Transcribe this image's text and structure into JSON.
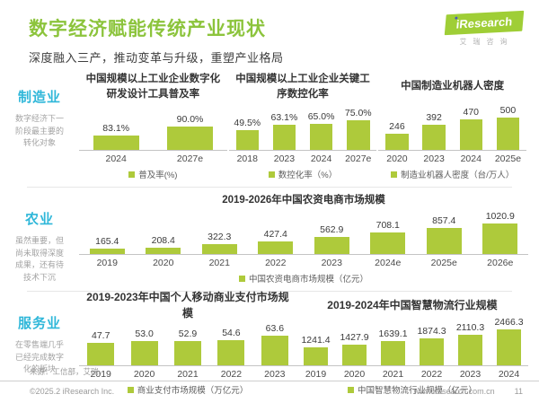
{
  "header": {
    "title": "数字经济赋能传统产业现状",
    "subtitle": "深度融入三产，推动变革与升级，重塑产业格局",
    "logo_text": "iResearch",
    "logo_sub": "艾瑞咨询"
  },
  "sidebar": [
    {
      "label": "制造业",
      "desc": "数字经济下一阶段最主要的转化对象"
    },
    {
      "label": "农业",
      "desc": "虽然重要，但尚未取得深度成果，还有待技术下沉"
    },
    {
      "label": "服务业",
      "desc": "在零售端几乎已经完成数字化的版块"
    }
  ],
  "chart_data": [
    {
      "type": "bar",
      "title": "中国规模以上工业企业数字化研发设计工具普及率",
      "categories": [
        "2024",
        "2027e"
      ],
      "values": [
        83.1,
        90.0
      ],
      "value_labels": [
        "83.1%",
        "90.0%"
      ],
      "legend": "普及率(%)",
      "ylim": [
        72,
        90
      ],
      "grid": false,
      "legend_position": "bottom"
    },
    {
      "type": "bar",
      "title": "中国规模以上工业企业关键工序数控化率",
      "categories": [
        "2018",
        "2023",
        "2024",
        "2027e"
      ],
      "values": [
        49.5,
        63.1,
        65.0,
        75.0
      ],
      "value_labels": [
        "49.5%",
        "63.1%",
        "65.0%",
        "75.0%"
      ],
      "legend": "数控化率（%）",
      "ylim": [
        0,
        75
      ],
      "grid": false,
      "legend_position": "bottom"
    },
    {
      "type": "bar",
      "title": "中国制造业机器人密度",
      "categories": [
        "2020",
        "2023",
        "2024",
        "2025e"
      ],
      "values": [
        246,
        392,
        470,
        500
      ],
      "value_labels": [
        "246",
        "392",
        "470",
        "500"
      ],
      "legend": "制造业机器人密度（台/万人）",
      "ylim": [
        0,
        500
      ],
      "grid": false,
      "legend_position": "bottom"
    },
    {
      "type": "bar",
      "title": "2019-2026年中国农资电商市场规模",
      "categories": [
        "2019",
        "2020",
        "2021",
        "2022",
        "2023",
        "2024e",
        "2025e",
        "2026e"
      ],
      "values": [
        165.4,
        208.4,
        322.3,
        427.4,
        562.9,
        708.1,
        857.4,
        1020.9
      ],
      "value_labels": [
        "165.4",
        "208.4",
        "322.3",
        "427.4",
        "562.9",
        "708.1",
        "857.4",
        "1020.9"
      ],
      "legend": "中国农资电商市场规模（亿元）",
      "ylim": [
        0,
        1020.9
      ],
      "grid": false,
      "legend_position": "bottom"
    },
    {
      "type": "bar",
      "title": "2019-2023年中国个人移动商业支付市场规模",
      "categories": [
        "2019",
        "2020",
        "2021",
        "2022",
        "2023"
      ],
      "values": [
        47.7,
        53.0,
        52.9,
        54.6,
        63.6
      ],
      "value_labels": [
        "47.7",
        "53.0",
        "52.9",
        "54.6",
        "63.6"
      ],
      "legend": "商业支付市场规模（万亿元）",
      "ylim": [
        0,
        63.6
      ],
      "grid": false,
      "legend_position": "bottom"
    },
    {
      "type": "bar",
      "title": "2019-2024年中国智慧物流行业规模",
      "categories": [
        "2019",
        "2020",
        "2021",
        "2022",
        "2023",
        "2024"
      ],
      "values": [
        1241.4,
        1427.9,
        1639.1,
        1874.3,
        2110.3,
        2466.3
      ],
      "value_labels": [
        "1241.4",
        "1427.9",
        "1639.1",
        "1874.3",
        "2110.3",
        "2466.3"
      ],
      "legend": "中国智慧物流行业规模（亿元）",
      "ylim": [
        0,
        2466.3
      ],
      "grid": false,
      "legend_position": "bottom"
    }
  ],
  "footer": {
    "source": "来源：工信部，艾瑞。",
    "copyright": "©2025.2 iResearch Inc.",
    "website": "www.iresearch.com.cn",
    "page": "11"
  },
  "colors": {
    "accent_green": "#8cc43c",
    "bar_green": "#aeca3b",
    "logo_green": "#9fce36",
    "sidebar_cyan": "#2fb7d9"
  }
}
